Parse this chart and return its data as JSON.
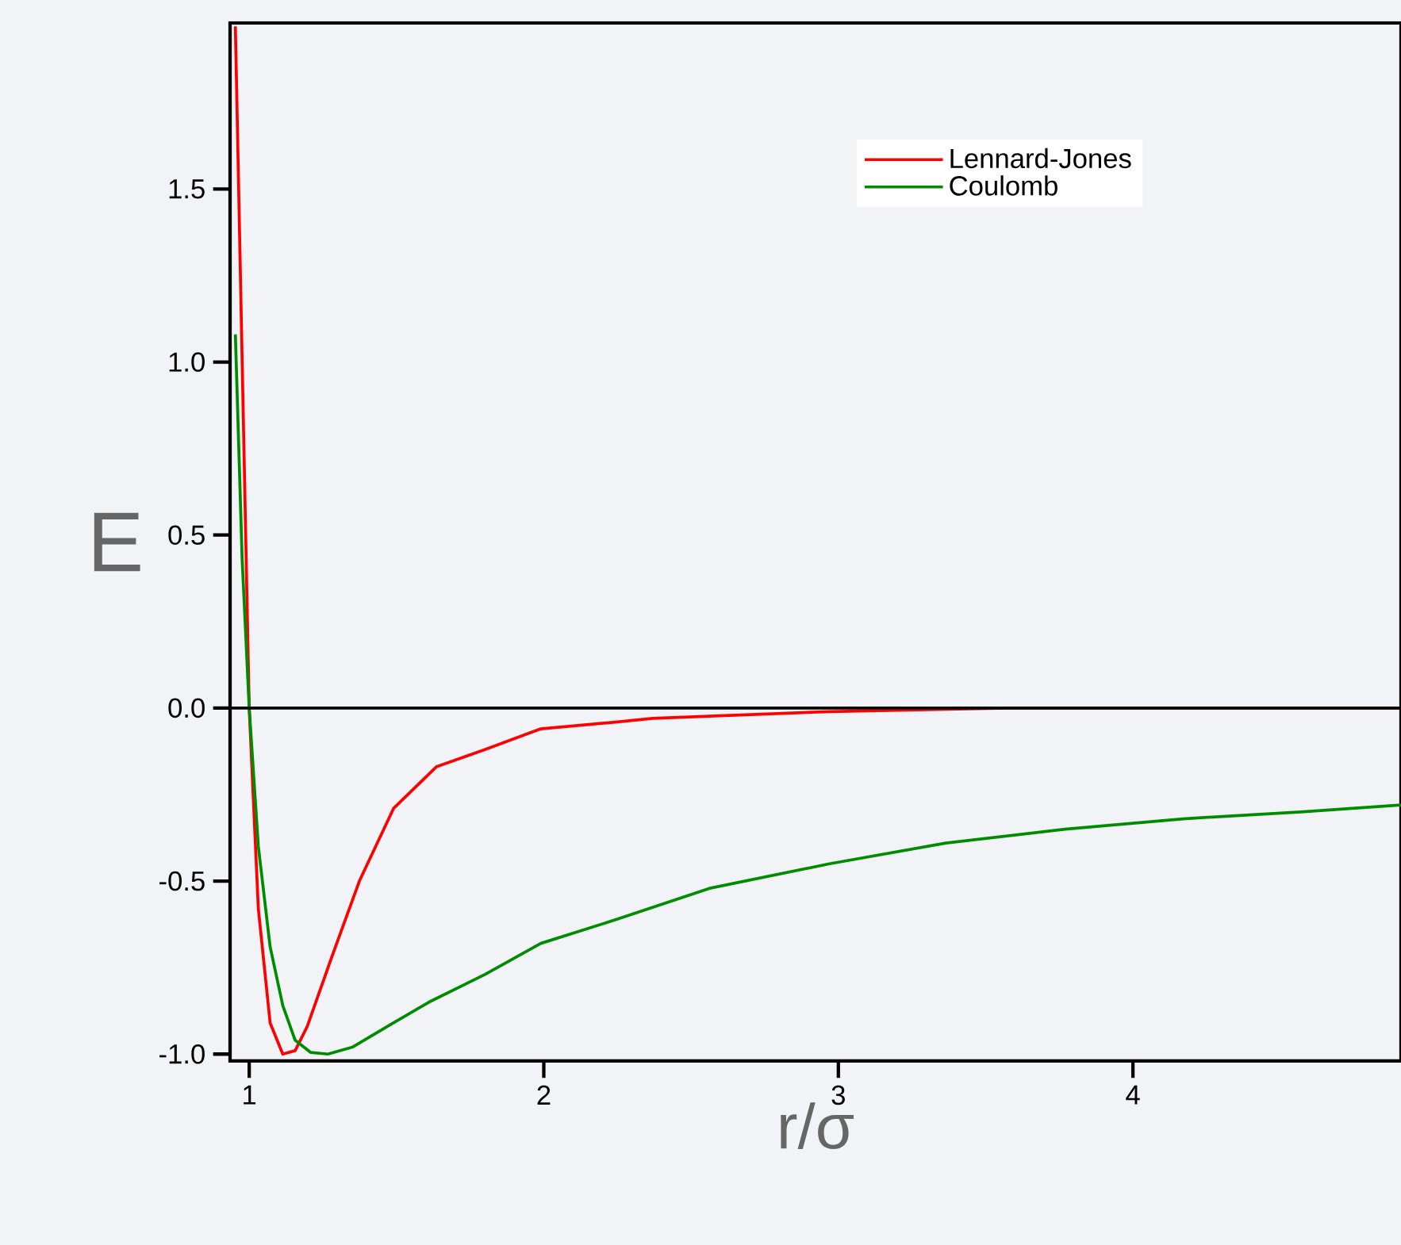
{
  "chart_data": {
    "type": "line",
    "xlabel": "r/σ",
    "ylabel": "E",
    "xlim": [
      0.935,
      4.91
    ],
    "ylim": [
      -1.02,
      1.98
    ],
    "xticks": [
      1,
      2,
      3,
      4
    ],
    "yticks": [
      {
        "value": -1,
        "label": "-1.0"
      },
      {
        "value": -0.5,
        "label": "-0.5"
      },
      {
        "value": 0,
        "label": "0.0"
      },
      {
        "value": 0.5,
        "label": "0.5"
      },
      {
        "value": 1,
        "label": "1.0"
      },
      {
        "value": 1.5,
        "label": "1.5"
      }
    ],
    "ref_lines": [
      {
        "axis": "y",
        "value": 0,
        "color": "#000000"
      }
    ],
    "legend": "top right",
    "grid": false,
    "marker": "none",
    "line_style": "solid",
    "series": [
      {
        "name": "Lennard-Jones",
        "color": "#ff0000",
        "x": [
          0.953,
          1.0,
          1.031,
          1.071,
          1.114,
          1.156,
          1.197,
          1.28,
          1.374,
          1.49,
          1.635,
          1.8,
          1.99,
          2.25,
          2.37,
          2.97,
          3.57,
          4.91
        ],
        "values": [
          1.97,
          0,
          -0.58,
          -0.91,
          -1.0,
          -0.99,
          -0.92,
          -0.72,
          -0.5,
          -0.29,
          -0.17,
          -0.12,
          -0.06,
          -0.04,
          -0.03,
          -0.01,
          0,
          0
        ]
      },
      {
        "name": "Coulomb",
        "color": "#008c00",
        "x": [
          0.953,
          0.976,
          1.0,
          1.031,
          1.071,
          1.114,
          1.156,
          1.208,
          1.267,
          1.35,
          1.469,
          1.61,
          1.8,
          1.99,
          2.25,
          2.567,
          2.97,
          3.365,
          3.77,
          4.17,
          4.57,
          4.91
        ],
        "values": [
          1.08,
          0.43,
          0,
          -0.4,
          -0.69,
          -0.86,
          -0.96,
          -0.995,
          -1.0,
          -0.98,
          -0.92,
          -0.85,
          -0.77,
          -0.68,
          -0.61,
          -0.52,
          -0.45,
          -0.39,
          -0.35,
          -0.32,
          -0.3,
          -0.28
        ]
      }
    ]
  }
}
